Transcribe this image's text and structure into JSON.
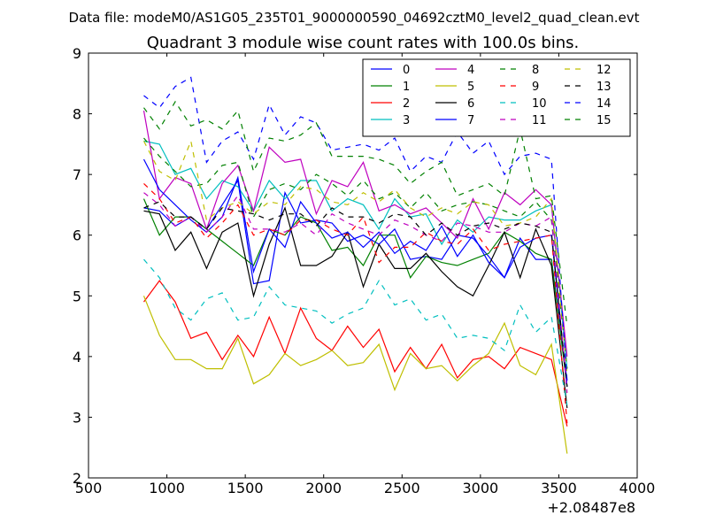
{
  "chart_data": {
    "type": "line",
    "suptitle": "Data file: modeM0/AS1G05_235T01_9000000590_04692cztM0_level2_quad_clean.evt",
    "title": "Quadrant 3 module wise count rates with 100.0s bins.",
    "xlabel": "",
    "ylabel": "",
    "x_offset_label": "+2.08487e8",
    "xlim": [
      500,
      4000
    ],
    "ylim": [
      2,
      9
    ],
    "xticks": [
      500,
      1000,
      1500,
      2000,
      2500,
      3000,
      3500,
      4000
    ],
    "yticks": [
      2,
      3,
      4,
      5,
      6,
      7,
      8,
      9
    ],
    "grid": false,
    "legend_position": "top-right",
    "legend_columns": 4,
    "x": [
      853,
      953,
      1053,
      1153,
      1253,
      1353,
      1453,
      1553,
      1653,
      1753,
      1853,
      1953,
      2053,
      2153,
      2253,
      2353,
      2453,
      2553,
      2653,
      2753,
      2853,
      2953,
      3053,
      3153,
      3253,
      3353,
      3453,
      3553
    ],
    "series": [
      {
        "name": "0",
        "color": "#0000ff",
        "style": "solid",
        "values": [
          6.45,
          6.4,
          6.15,
          6.3,
          6.1,
          6.5,
          6.9,
          5.2,
          5.25,
          6.7,
          6.2,
          6.25,
          6.2,
          5.9,
          6.0,
          5.85,
          6.1,
          5.6,
          5.65,
          5.6,
          6.0,
          5.95,
          5.65,
          5.3,
          5.95,
          5.6,
          5.6,
          3.6
        ]
      },
      {
        "name": "1",
        "color": "#008000",
        "style": "solid",
        "values": [
          6.6,
          6.0,
          6.3,
          6.3,
          6.1,
          5.9,
          5.7,
          5.5,
          6.1,
          6.0,
          6.3,
          6.2,
          5.75,
          5.8,
          5.5,
          6.0,
          6.0,
          5.3,
          5.65,
          5.55,
          5.5,
          5.6,
          5.7,
          6.05,
          5.9,
          5.7,
          5.6,
          3.5
        ]
      },
      {
        "name": "2",
        "color": "#ff0000",
        "style": "solid",
        "values": [
          4.9,
          5.25,
          4.9,
          4.3,
          4.4,
          3.95,
          4.35,
          4.0,
          4.65,
          4.05,
          4.8,
          4.3,
          4.1,
          4.5,
          4.15,
          4.45,
          3.75,
          4.15,
          3.8,
          4.2,
          3.65,
          3.95,
          4.0,
          3.8,
          4.15,
          4.05,
          3.95,
          2.85
        ]
      },
      {
        "name": "3",
        "color": "#00bfbf",
        "style": "solid",
        "values": [
          7.55,
          7.5,
          7.0,
          7.1,
          6.6,
          6.9,
          6.8,
          6.4,
          6.9,
          6.6,
          6.9,
          6.9,
          6.4,
          6.6,
          6.5,
          6.1,
          6.6,
          6.3,
          6.35,
          5.85,
          6.25,
          6.05,
          6.3,
          6.25,
          6.25,
          6.4,
          6.5,
          3.8
        ]
      },
      {
        "name": "4",
        "color": "#bf00bf",
        "style": "solid",
        "values": [
          8.05,
          6.6,
          6.95,
          6.85,
          6.1,
          6.85,
          7.15,
          6.4,
          7.45,
          7.2,
          7.25,
          6.35,
          6.9,
          6.8,
          7.2,
          6.4,
          6.5,
          6.35,
          6.45,
          6.2,
          5.95,
          6.6,
          6.1,
          6.7,
          6.5,
          6.75,
          6.5,
          4.0
        ]
      },
      {
        "name": "5",
        "color": "#bfbf00",
        "style": "solid",
        "values": [
          5.0,
          4.35,
          3.95,
          3.95,
          3.8,
          3.8,
          4.3,
          3.55,
          3.7,
          4.05,
          3.85,
          3.95,
          4.1,
          3.85,
          3.9,
          4.2,
          3.45,
          4.05,
          3.8,
          3.85,
          3.6,
          3.85,
          4.05,
          4.55,
          3.85,
          3.7,
          4.2,
          2.4
        ]
      },
      {
        "name": "6",
        "color": "#000000",
        "style": "solid",
        "values": [
          6.4,
          6.35,
          5.75,
          6.05,
          5.45,
          6.05,
          6.2,
          5.0,
          5.85,
          6.45,
          5.5,
          5.5,
          5.65,
          6.05,
          5.15,
          5.85,
          5.45,
          5.45,
          5.7,
          5.4,
          5.15,
          5.0,
          5.5,
          6.05,
          5.3,
          6.1,
          5.5,
          3.15
        ]
      },
      {
        "name": "7",
        "color": "#0000ff",
        "style": "solid",
        "values": [
          7.25,
          6.75,
          6.5,
          6.25,
          6.05,
          6.3,
          6.95,
          5.4,
          6.1,
          5.8,
          6.55,
          6.2,
          5.95,
          6.05,
          5.8,
          6.05,
          5.7,
          5.9,
          5.75,
          6.15,
          5.65,
          6.0,
          5.55,
          5.3,
          5.8,
          5.95,
          6.0,
          3.5
        ]
      },
      {
        "name": "8",
        "color": "#008000",
        "style": "dashed",
        "values": [
          7.6,
          7.3,
          7.05,
          6.8,
          6.85,
          7.15,
          7.2,
          6.3,
          6.75,
          6.85,
          6.75,
          7.0,
          6.85,
          6.65,
          6.9,
          6.6,
          6.7,
          6.45,
          6.7,
          6.4,
          6.5,
          6.55,
          6.5,
          6.4,
          6.3,
          6.55,
          6.25,
          3.8
        ]
      },
      {
        "name": "9",
        "color": "#ff0000",
        "style": "dashed",
        "values": [
          6.85,
          6.6,
          6.2,
          6.3,
          5.95,
          6.2,
          6.5,
          6.0,
          6.1,
          6.0,
          6.25,
          6.25,
          6.1,
          6.0,
          6.3,
          5.55,
          5.8,
          5.8,
          6.05,
          5.9,
          5.85,
          6.1,
          5.75,
          5.85,
          5.9,
          5.95,
          6.0,
          2.9
        ]
      },
      {
        "name": "10",
        "color": "#00bfbf",
        "style": "dashed",
        "values": [
          5.6,
          5.3,
          4.8,
          4.6,
          4.95,
          5.05,
          4.6,
          4.65,
          5.15,
          4.85,
          4.8,
          4.75,
          4.55,
          4.7,
          4.8,
          5.25,
          4.85,
          4.95,
          4.6,
          4.7,
          4.3,
          4.35,
          4.3,
          4.1,
          4.85,
          4.4,
          4.65,
          3.2
        ]
      },
      {
        "name": "11",
        "color": "#bf00bf",
        "style": "dashed",
        "values": [
          6.7,
          6.5,
          6.15,
          6.3,
          6.05,
          6.3,
          6.65,
          6.1,
          6.1,
          6.05,
          6.2,
          6.0,
          6.35,
          6.2,
          6.1,
          6.0,
          6.25,
          6.15,
          6.0,
          5.9,
          6.2,
          6.15,
          6.05,
          6.05,
          6.2,
          6.15,
          6.3,
          3.4
        ]
      },
      {
        "name": "12",
        "color": "#bfbf00",
        "style": "dashed",
        "values": [
          7.55,
          7.05,
          6.9,
          7.55,
          6.25,
          6.45,
          6.55,
          6.35,
          6.55,
          6.5,
          6.8,
          6.75,
          6.55,
          6.5,
          6.7,
          6.55,
          6.75,
          6.45,
          6.3,
          6.45,
          6.35,
          6.55,
          6.5,
          6.15,
          6.2,
          6.3,
          6.6,
          3.7
        ]
      },
      {
        "name": "13",
        "color": "#000000",
        "style": "dashed",
        "values": [
          6.45,
          6.55,
          6.3,
          6.3,
          6.1,
          6.45,
          6.4,
          6.35,
          6.25,
          6.35,
          6.35,
          6.15,
          6.45,
          6.3,
          6.3,
          6.2,
          6.35,
          6.3,
          6.0,
          6.2,
          6.0,
          6.15,
          6.2,
          6.1,
          6.2,
          6.15,
          6.05,
          3.5
        ]
      },
      {
        "name": "14",
        "color": "#0000ff",
        "style": "dashed",
        "values": [
          8.3,
          8.1,
          8.45,
          8.6,
          7.2,
          7.55,
          7.7,
          7.25,
          8.15,
          7.65,
          7.95,
          7.85,
          7.4,
          7.45,
          7.5,
          7.4,
          7.6,
          7.05,
          7.3,
          7.2,
          7.7,
          7.35,
          7.55,
          7.0,
          7.3,
          7.35,
          7.25,
          3.6
        ]
      },
      {
        "name": "15",
        "color": "#008000",
        "style": "dashed",
        "values": [
          8.1,
          7.75,
          8.2,
          7.8,
          7.9,
          7.75,
          8.05,
          7.05,
          7.6,
          7.55,
          7.65,
          7.85,
          7.3,
          7.3,
          7.3,
          7.25,
          7.15,
          6.85,
          7.05,
          7.2,
          6.65,
          6.75,
          6.85,
          6.65,
          7.75,
          6.6,
          6.65,
          4.5
        ]
      }
    ]
  }
}
